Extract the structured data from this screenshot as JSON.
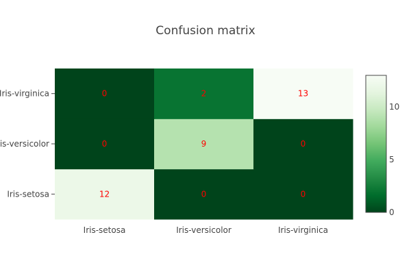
{
  "chart_data": {
    "type": "heatmap",
    "title": "Confusion matrix",
    "x_categories": [
      "Iris-setosa",
      "Iris-versicolor",
      "Iris-virginica"
    ],
    "y_categories": [
      "Iris-setosa",
      "Iris-versicolor",
      "Iris-virginica"
    ],
    "z": [
      [
        12,
        0,
        0
      ],
      [
        0,
        9,
        0
      ],
      [
        0,
        2,
        13
      ]
    ],
    "zmin": 0,
    "zmax": 13,
    "colorscale": "Greens (reversed: low = dark green, high = near white)",
    "colorbar_ticks": [
      0,
      5,
      10
    ],
    "annotation_color": "#ff0000",
    "colors": {
      "low": "#00441b",
      "high": "#f7fcf5",
      "text": "#444444"
    }
  }
}
